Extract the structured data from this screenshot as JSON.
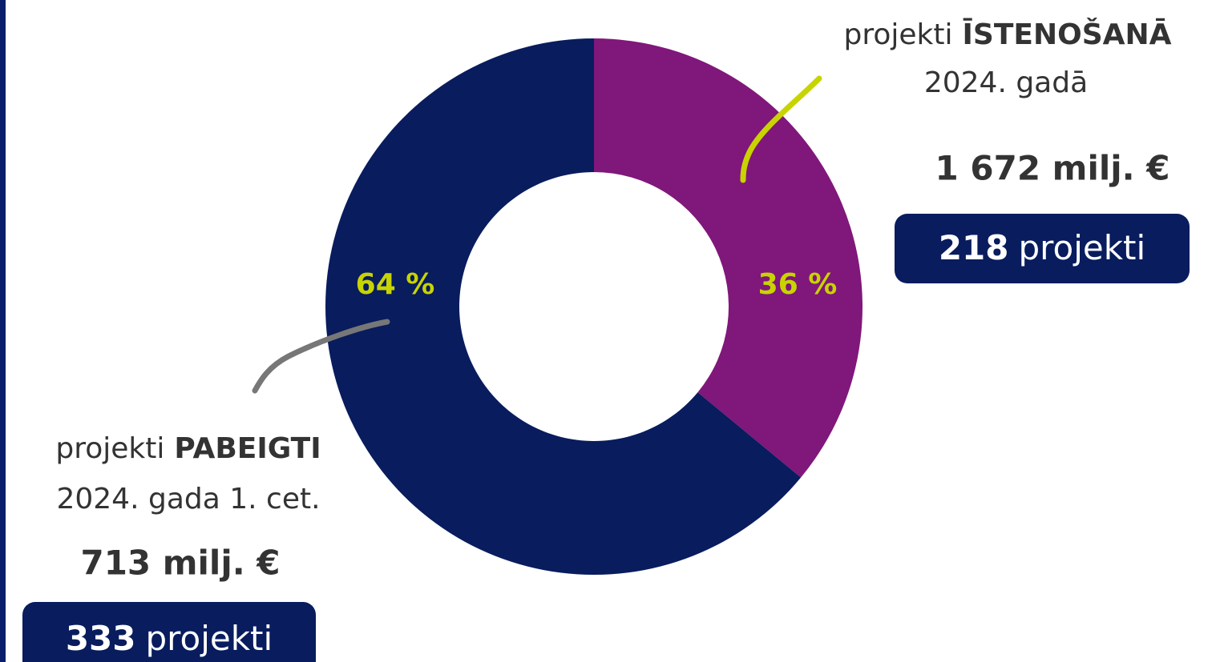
{
  "chart_data": {
    "type": "pie",
    "values": [
      36,
      64
    ],
    "value_labels": [
      "36 %",
      "64 %"
    ],
    "colors": [
      "#80177a",
      "#081c5e"
    ],
    "label_color": "#c8d400",
    "annotations": [
      {
        "prefix": "projekti",
        "emphasis": "ĪSTENOŠANĀ",
        "period": "2024. gadā",
        "amount": "1 672 milj. €",
        "count": "218",
        "count_unit": "projekti"
      },
      {
        "prefix": "projekti",
        "emphasis": "PABEIGTI",
        "period": "2024. gada 1. cet.",
        "amount": "713 milj. €",
        "count": "333",
        "count_unit": "projekti"
      }
    ]
  }
}
